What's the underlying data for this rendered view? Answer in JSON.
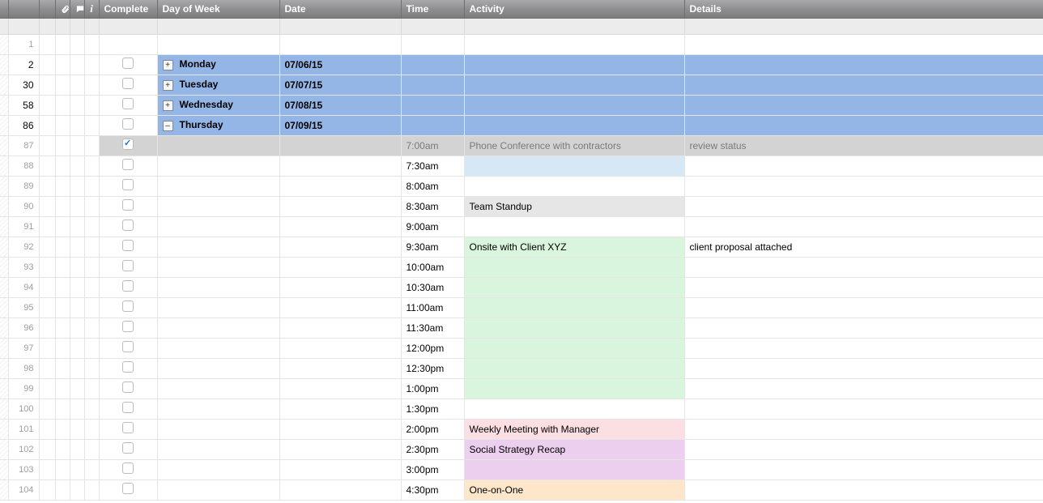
{
  "header": {
    "complete": "Complete",
    "day_of_week": "Day of Week",
    "date": "Date",
    "time": "Time",
    "activity": "Activity",
    "details": "Details",
    "icons": {
      "attach": "attach-icon",
      "comment": "comment-icon",
      "info": "info-icon"
    }
  },
  "colors": {
    "day_row_bg": "#94b6e6",
    "done_row_bg": "#d3d3d3",
    "done_text": "#7a7a7a",
    "activity_blue": "#d6e7f5",
    "activity_gray": "#e6e6e6",
    "activity_green": "#d9f5dd",
    "activity_pink": "#fbdfe2",
    "activity_purple": "#ecceef",
    "activity_peach": "#fde6ca"
  },
  "rows": [
    {
      "type": "blank",
      "num": "1"
    },
    {
      "type": "day",
      "num": "2",
      "expand": "+",
      "day": "Monday",
      "date": "07/06/15"
    },
    {
      "type": "day",
      "num": "30",
      "expand": "+",
      "day": "Tuesday",
      "date": "07/07/15"
    },
    {
      "type": "day",
      "num": "58",
      "expand": "+",
      "day": "Wednesday",
      "date": "07/08/15"
    },
    {
      "type": "day",
      "num": "86",
      "expand": "–",
      "day": "Thursday",
      "date": "07/09/15"
    },
    {
      "type": "done",
      "num": "87",
      "checked": true,
      "time": "7:00am",
      "activity": "Phone Conference with contractors",
      "details": "review status"
    },
    {
      "type": "slot",
      "num": "88",
      "checked": false,
      "time": "7:30am",
      "activity": "",
      "details": "",
      "activity_bg": "#d6e7f5"
    },
    {
      "type": "slot",
      "num": "89",
      "checked": false,
      "time": "8:00am",
      "activity": "",
      "details": ""
    },
    {
      "type": "slot",
      "num": "90",
      "checked": false,
      "time": "8:30am",
      "activity": "Team Standup",
      "details": "",
      "activity_bg": "#e6e6e6"
    },
    {
      "type": "slot",
      "num": "91",
      "checked": false,
      "time": "9:00am",
      "activity": "",
      "details": ""
    },
    {
      "type": "slot",
      "num": "92",
      "checked": false,
      "time": "9:30am",
      "activity": "Onsite with Client XYZ",
      "details": "client proposal attached",
      "activity_bg": "#d9f5dd"
    },
    {
      "type": "slot",
      "num": "93",
      "checked": false,
      "time": "10:00am",
      "activity": "",
      "details": "",
      "activity_bg": "#d9f5dd"
    },
    {
      "type": "slot",
      "num": "94",
      "checked": false,
      "time": "10:30am",
      "activity": "",
      "details": "",
      "activity_bg": "#d9f5dd"
    },
    {
      "type": "slot",
      "num": "95",
      "checked": false,
      "time": "11:00am",
      "activity": "",
      "details": "",
      "activity_bg": "#d9f5dd"
    },
    {
      "type": "slot",
      "num": "96",
      "checked": false,
      "time": "11:30am",
      "activity": "",
      "details": "",
      "activity_bg": "#d9f5dd"
    },
    {
      "type": "slot",
      "num": "97",
      "checked": false,
      "time": "12:00pm",
      "activity": "",
      "details": "",
      "activity_bg": "#d9f5dd"
    },
    {
      "type": "slot",
      "num": "98",
      "checked": false,
      "time": "12:30pm",
      "activity": "",
      "details": "",
      "activity_bg": "#d9f5dd"
    },
    {
      "type": "slot",
      "num": "99",
      "checked": false,
      "time": "1:00pm",
      "activity": "",
      "details": "",
      "activity_bg": "#d9f5dd"
    },
    {
      "type": "slot",
      "num": "100",
      "checked": false,
      "time": "1:30pm",
      "activity": "",
      "details": ""
    },
    {
      "type": "slot",
      "num": "101",
      "checked": false,
      "time": "2:00pm",
      "activity": "Weekly Meeting with Manager",
      "details": "",
      "activity_bg": "#fbdfe2"
    },
    {
      "type": "slot",
      "num": "102",
      "checked": false,
      "time": "2:30pm",
      "activity": "Social Strategy Recap",
      "details": "",
      "activity_bg": "#ecceef"
    },
    {
      "type": "slot",
      "num": "103",
      "checked": false,
      "time": "3:00pm",
      "activity": "",
      "details": "",
      "activity_bg": "#ecceef"
    },
    {
      "type": "slot",
      "num": "104",
      "checked": false,
      "time": "4:30pm",
      "activity": "One-on-One",
      "details": "",
      "activity_bg": "#fde6ca"
    }
  ]
}
